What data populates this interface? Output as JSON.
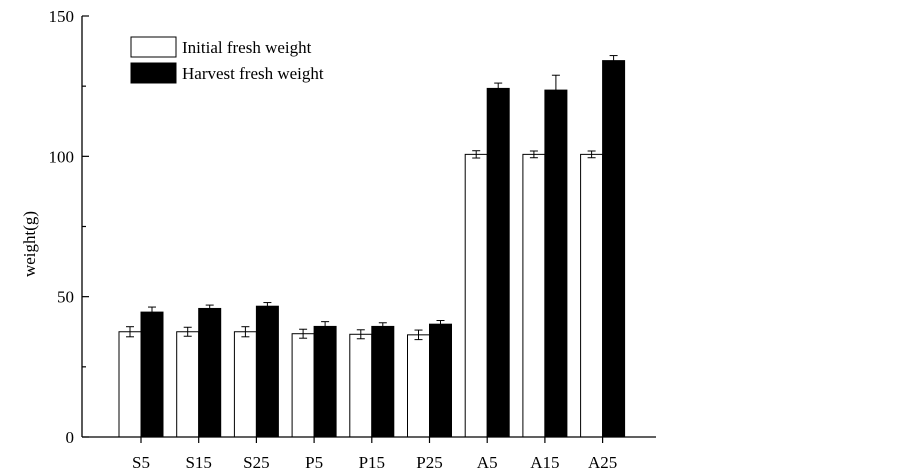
{
  "chart_data": {
    "type": "bar",
    "title": "",
    "xlabel": "",
    "ylabel": "weight(g)",
    "ylim": [
      0,
      150
    ],
    "yticks": [
      0,
      50,
      100,
      150
    ],
    "grid": false,
    "legend_position": "top-left",
    "categories": [
      "S5",
      "S15",
      "S25",
      "P5",
      "P15",
      "P25",
      "A5",
      "A15",
      "A25"
    ],
    "series": [
      {
        "name": "Initial fresh weight",
        "color": "#ffffff",
        "values": [
          37.5,
          37.5,
          37.5,
          36.8,
          36.6,
          36.4,
          100.7,
          100.7,
          100.7
        ],
        "errors": [
          1.8,
          1.6,
          1.8,
          1.6,
          1.6,
          1.7,
          1.3,
          1.2,
          1.2
        ]
      },
      {
        "name": "Harvest fresh weight",
        "color": "#000000",
        "values": [
          44.5,
          45.8,
          46.6,
          39.4,
          39.4,
          40.2,
          124.2,
          123.6,
          134.1
        ],
        "errors": [
          1.8,
          1.2,
          1.3,
          1.7,
          1.3,
          1.3,
          1.9,
          5.3,
          1.8
        ]
      }
    ]
  }
}
